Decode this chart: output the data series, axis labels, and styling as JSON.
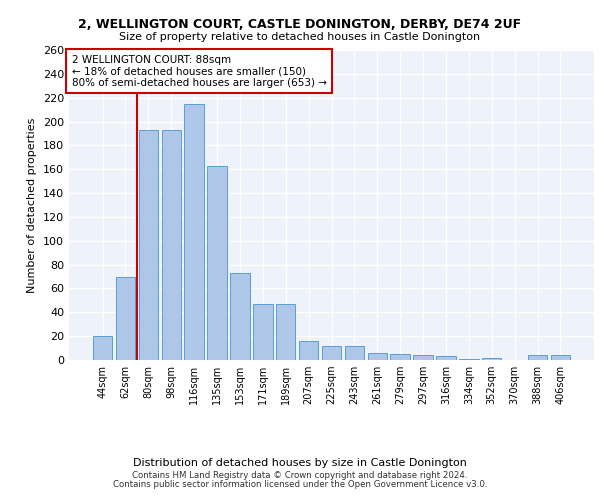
{
  "title1": "2, WELLINGTON COURT, CASTLE DONINGTON, DERBY, DE74 2UF",
  "title2": "Size of property relative to detached houses in Castle Donington",
  "xlabel": "Distribution of detached houses by size in Castle Donington",
  "ylabel": "Number of detached properties",
  "categories": [
    "44sqm",
    "62sqm",
    "80sqm",
    "98sqm",
    "116sqm",
    "135sqm",
    "153sqm",
    "171sqm",
    "189sqm",
    "207sqm",
    "225sqm",
    "243sqm",
    "261sqm",
    "279sqm",
    "297sqm",
    "316sqm",
    "334sqm",
    "352sqm",
    "370sqm",
    "388sqm",
    "406sqm"
  ],
  "values": [
    20,
    70,
    193,
    193,
    215,
    163,
    73,
    47,
    47,
    16,
    12,
    12,
    6,
    5,
    4,
    3,
    1,
    2,
    0,
    4,
    4
  ],
  "bar_color": "#aec6e8",
  "bar_edgecolor": "#5a9fd4",
  "highlight_line_color": "#cc0000",
  "annotation_text": "2 WELLINGTON COURT: 88sqm\n← 18% of detached houses are smaller (150)\n80% of semi-detached houses are larger (653) →",
  "annotation_box_color": "#cc0000",
  "ylim": [
    0,
    260
  ],
  "yticks": [
    0,
    20,
    40,
    60,
    80,
    100,
    120,
    140,
    160,
    180,
    200,
    220,
    240,
    260
  ],
  "bg_color": "#eef2fb",
  "grid_color": "#ffffff",
  "footer1": "Contains HM Land Registry data © Crown copyright and database right 2024.",
  "footer2": "Contains public sector information licensed under the Open Government Licence v3.0."
}
